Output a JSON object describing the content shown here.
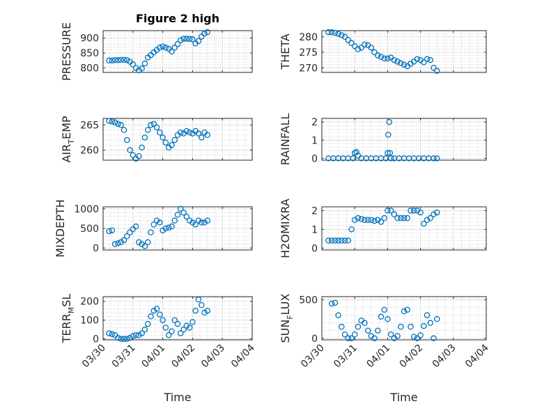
{
  "figure_title": "Figure 2 high",
  "x_axis_label": "Time",
  "colors": {
    "marker": "#0072BD",
    "axes": "#262626",
    "grid": "#b5b5b5",
    "background": "#ffffff"
  },
  "chart_data": [
    {
      "type": "scatter",
      "marker": "circle-open",
      "title": "Figure 2 high",
      "ylabel": "PRESSURE",
      "xlabel": "",
      "xlim": [
        "03/30",
        "04/04"
      ],
      "x_ticks": [],
      "ylim": [
        785,
        925
      ],
      "y_ticks": [
        800,
        850,
        900
      ],
      "y_tick_labels": [
        "800",
        "850",
        "900"
      ],
      "grid": true,
      "minor_grid": true,
      "x": [
        0.2,
        0.3,
        0.4,
        0.5,
        0.6,
        0.7,
        0.8,
        0.9,
        1.0,
        1.1,
        1.2,
        1.3,
        1.4,
        1.5,
        1.6,
        1.7,
        1.8,
        1.9,
        2.0,
        2.1,
        2.2,
        2.3,
        2.4,
        2.5,
        2.6,
        2.7,
        2.8,
        2.9,
        3.0,
        3.1,
        3.2,
        3.3,
        3.4,
        3.5
      ],
      "y": [
        825,
        825,
        826,
        826,
        827,
        827,
        826,
        821,
        812,
        800,
        792,
        798,
        815,
        835,
        843,
        852,
        860,
        868,
        872,
        868,
        864,
        855,
        868,
        880,
        893,
        898,
        898,
        897,
        896,
        882,
        890,
        905,
        915,
        920
      ]
    },
    {
      "type": "scatter",
      "marker": "circle-open",
      "title": "",
      "ylabel": "THETA",
      "xlabel": "",
      "xlim": [
        "03/30",
        "04/04"
      ],
      "x_ticks": [],
      "ylim": [
        268.5,
        282
      ],
      "y_ticks": [
        270,
        275,
        280
      ],
      "y_tick_labels": [
        "270",
        "275",
        "280"
      ],
      "grid": true,
      "minor_grid": true,
      "x": [
        0.2,
        0.3,
        0.4,
        0.5,
        0.6,
        0.7,
        0.8,
        0.9,
        1.0,
        1.1,
        1.2,
        1.3,
        1.4,
        1.5,
        1.6,
        1.7,
        1.8,
        1.9,
        2.0,
        2.1,
        2.2,
        2.3,
        2.4,
        2.5,
        2.6,
        2.7,
        2.8,
        2.9,
        3.0,
        3.1,
        3.2,
        3.3,
        3.4,
        3.5
      ],
      "y": [
        281.5,
        281.5,
        281.3,
        281,
        280.5,
        280,
        279,
        278,
        277,
        276,
        276.5,
        277.5,
        277.3,
        276.5,
        275,
        274,
        273.5,
        273,
        273,
        273.3,
        272.5,
        272,
        271.5,
        271,
        270.5,
        271.3,
        272,
        272.8,
        272.5,
        271.8,
        272.8,
        272.5,
        270,
        269
      ]
    },
    {
      "type": "scatter",
      "marker": "circle-open",
      "title": "",
      "ylabel": "AIR_TEMP",
      "ylabel_display": {
        "base": "AIR",
        "subscript": "T",
        "rest": "EMP"
      },
      "xlabel": "",
      "xlim": [
        "03/30",
        "04/04"
      ],
      "x_ticks": [],
      "ylim": [
        258,
        266.3
      ],
      "y_ticks": [
        260,
        265
      ],
      "y_tick_labels": [
        "260",
        "265"
      ],
      "grid": true,
      "minor_grid": true,
      "x": [
        0.2,
        0.3,
        0.4,
        0.5,
        0.6,
        0.7,
        0.8,
        0.9,
        1.0,
        1.1,
        1.2,
        1.3,
        1.4,
        1.5,
        1.6,
        1.7,
        1.8,
        1.9,
        2.0,
        2.1,
        2.2,
        2.3,
        2.4,
        2.5,
        2.6,
        2.7,
        2.8,
        2.9,
        3.0,
        3.1,
        3.2,
        3.3,
        3.4,
        3.5
      ],
      "y": [
        265.8,
        265.7,
        265.5,
        265.2,
        265,
        264,
        262,
        260,
        259,
        258.3,
        258.8,
        260.5,
        262.5,
        264,
        265,
        265.2,
        264.5,
        263.5,
        262.5,
        261.5,
        260.5,
        261,
        262,
        263,
        263.5,
        263.3,
        263.8,
        263.5,
        263.3,
        263.8,
        263.3,
        262.5,
        263.5,
        263
      ]
    },
    {
      "type": "scatter",
      "marker": "circle-open",
      "title": "",
      "ylabel": "RAINFALL",
      "xlabel": "",
      "xlim": [
        "03/30",
        "04/04"
      ],
      "x_ticks": [],
      "ylim": [
        -0.1,
        2.2
      ],
      "y_ticks": [
        0,
        1,
        2
      ],
      "y_tick_labels": [
        "0",
        "1",
        "2"
      ],
      "grid": true,
      "minor_grid": true,
      "x": [
        0.2,
        0.35,
        0.5,
        0.65,
        0.8,
        0.95,
        1.0,
        1.05,
        1.1,
        1.2,
        1.35,
        1.5,
        1.65,
        1.8,
        1.95,
        2.0,
        2.02,
        2.05,
        2.07,
        2.1,
        2.2,
        2.35,
        2.5,
        2.65,
        2.8,
        2.95,
        3.1,
        3.25,
        3.4,
        3.5
      ],
      "y": [
        0,
        0,
        0,
        0,
        0,
        0,
        0.3,
        0.35,
        0.15,
        0,
        0,
        0,
        0,
        0,
        0,
        0.3,
        1.3,
        2,
        0.3,
        0,
        0,
        0,
        0,
        0,
        0,
        0,
        0,
        0,
        0,
        0
      ]
    },
    {
      "type": "scatter",
      "marker": "circle-open",
      "title": "",
      "ylabel": "MIXDEPTH",
      "xlabel": "",
      "xlim": [
        "03/30",
        "04/04"
      ],
      "x_ticks": [],
      "ylim": [
        -50,
        1050
      ],
      "y_ticks": [
        0,
        500,
        1000
      ],
      "y_tick_labels": [
        "0",
        "500",
        "1000"
      ],
      "grid": true,
      "minor_grid": true,
      "x": [
        0.2,
        0.3,
        0.4,
        0.5,
        0.6,
        0.7,
        0.8,
        0.9,
        1.0,
        1.1,
        1.2,
        1.3,
        1.4,
        1.5,
        1.6,
        1.7,
        1.8,
        1.9,
        2.0,
        2.1,
        2.2,
        2.3,
        2.4,
        2.5,
        2.6,
        2.7,
        2.8,
        2.9,
        3.0,
        3.1,
        3.2,
        3.3,
        3.4,
        3.5
      ],
      "y": [
        430,
        450,
        100,
        120,
        150,
        200,
        300,
        400,
        480,
        550,
        150,
        100,
        50,
        150,
        400,
        600,
        700,
        650,
        450,
        500,
        520,
        550,
        700,
        850,
        1000,
        900,
        800,
        700,
        650,
        600,
        700,
        650,
        650,
        700
      ]
    },
    {
      "type": "scatter",
      "marker": "circle-open",
      "title": "",
      "ylabel": "H2OMIXRA",
      "xlabel": "",
      "xlim": [
        "03/30",
        "04/04"
      ],
      "x_ticks": [],
      "ylim": [
        -0.1,
        2.2
      ],
      "y_ticks": [
        0,
        1,
        2
      ],
      "y_tick_labels": [
        "0",
        "1",
        "2"
      ],
      "grid": true,
      "minor_grid": true,
      "x": [
        0.2,
        0.3,
        0.4,
        0.5,
        0.6,
        0.7,
        0.8,
        0.9,
        1.0,
        1.1,
        1.2,
        1.3,
        1.4,
        1.5,
        1.6,
        1.7,
        1.8,
        1.9,
        2.0,
        2.1,
        2.2,
        2.3,
        2.4,
        2.5,
        2.6,
        2.7,
        2.8,
        2.9,
        3.0,
        3.1,
        3.2,
        3.3,
        3.4,
        3.5
      ],
      "y": [
        0.4,
        0.4,
        0.4,
        0.4,
        0.4,
        0.4,
        0.4,
        1,
        1.5,
        1.6,
        1.55,
        1.5,
        1.5,
        1.5,
        1.45,
        1.5,
        1.4,
        1.6,
        2,
        2,
        1.8,
        1.6,
        1.6,
        1.6,
        1.6,
        2,
        2,
        2,
        1.9,
        1.3,
        1.5,
        1.6,
        1.8,
        1.9
      ]
    },
    {
      "type": "scatter",
      "marker": "circle-open",
      "title": "",
      "ylabel": "TERR_MSL",
      "ylabel_display": {
        "base": "TERR",
        "subscript": "M",
        "rest": "SL"
      },
      "xlabel": "Time",
      "xlim": [
        "03/30",
        "04/04"
      ],
      "x_ticks": [
        "03/30",
        "03/31",
        "04/01",
        "04/02",
        "04/03",
        "04/04"
      ],
      "ylim": [
        -5,
        225
      ],
      "y_ticks": [
        0,
        100,
        200
      ],
      "y_tick_labels": [
        "0",
        "100",
        "200"
      ],
      "grid": true,
      "minor_grid": true,
      "x": [
        0.2,
        0.3,
        0.4,
        0.5,
        0.6,
        0.7,
        0.8,
        0.9,
        1.0,
        1.1,
        1.2,
        1.3,
        1.4,
        1.5,
        1.6,
        1.7,
        1.8,
        1.9,
        2.0,
        2.1,
        2.2,
        2.3,
        2.4,
        2.5,
        2.6,
        2.7,
        2.8,
        2.9,
        3.0,
        3.1,
        3.2,
        3.3,
        3.4,
        3.5
      ],
      "y": [
        30,
        25,
        20,
        5,
        0,
        0,
        0,
        5,
        15,
        20,
        20,
        30,
        50,
        80,
        120,
        150,
        160,
        130,
        100,
        60,
        20,
        40,
        100,
        80,
        30,
        50,
        70,
        60,
        90,
        150,
        210,
        180,
        140,
        150
      ]
    },
    {
      "type": "scatter",
      "marker": "circle-open",
      "title": "",
      "ylabel": "SUN_FLUX",
      "ylabel_display": {
        "base": "SUN",
        "subscript": "F",
        "rest": "LUX"
      },
      "xlabel": "Time",
      "xlim": [
        "03/30",
        "04/04"
      ],
      "x_ticks": [
        "03/30",
        "03/31",
        "04/01",
        "04/02",
        "04/03",
        "04/04"
      ],
      "ylim": [
        -20,
        540
      ],
      "y_ticks": [
        0,
        500
      ],
      "y_tick_labels": [
        "0",
        "500"
      ],
      "grid": true,
      "minor_grid": true,
      "x": [
        0.3,
        0.4,
        0.5,
        0.6,
        0.7,
        0.8,
        0.9,
        1.0,
        1.1,
        1.2,
        1.3,
        1.4,
        1.5,
        1.6,
        1.7,
        1.8,
        1.9,
        2.0,
        2.1,
        2.2,
        2.3,
        2.4,
        2.5,
        2.6,
        2.7,
        2.8,
        2.9,
        3.0,
        3.1,
        3.2,
        3.3,
        3.4,
        3.5
      ],
      "y": [
        450,
        460,
        300,
        150,
        50,
        0,
        0,
        50,
        150,
        230,
        200,
        100,
        30,
        0,
        100,
        280,
        370,
        250,
        50,
        0,
        30,
        150,
        350,
        370,
        150,
        20,
        0,
        40,
        160,
        300,
        200,
        0,
        250
      ]
    }
  ]
}
